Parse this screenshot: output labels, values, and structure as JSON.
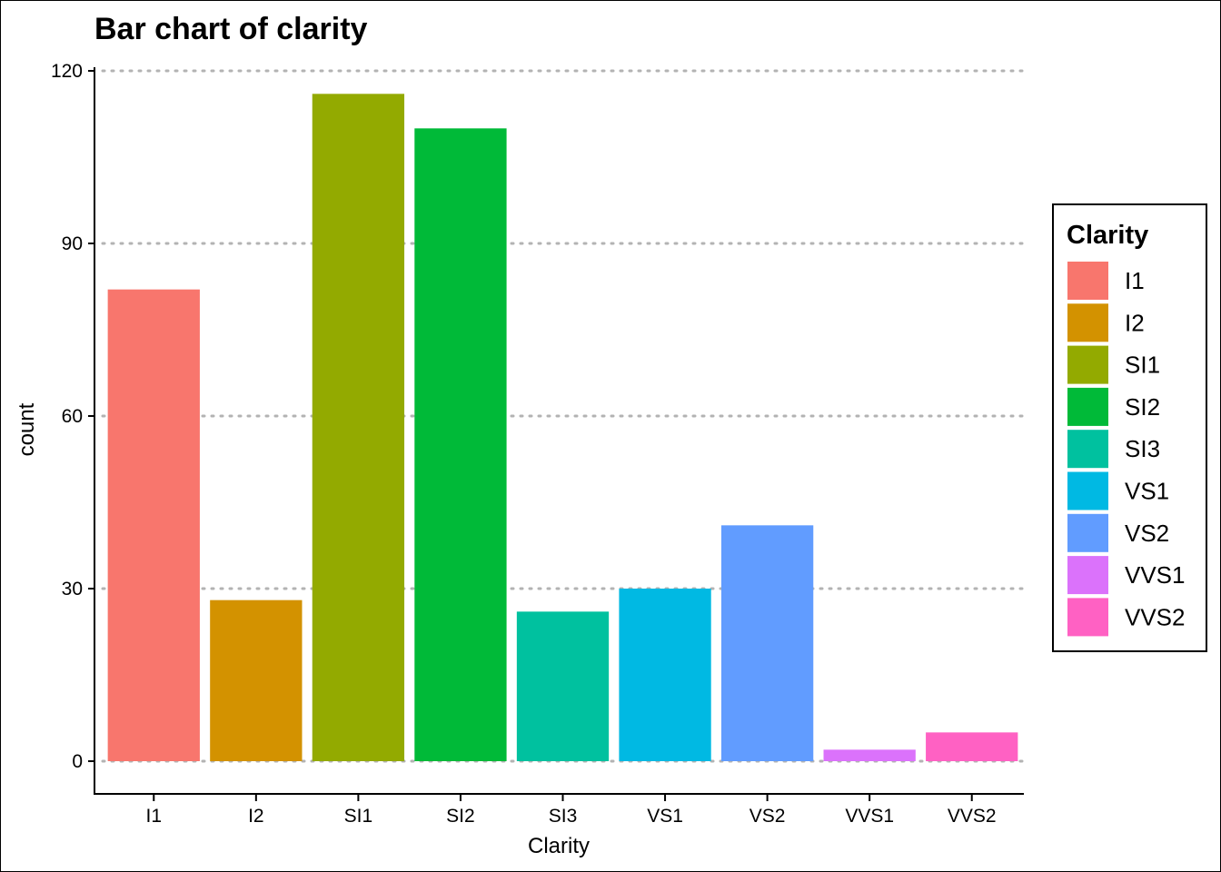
{
  "chart_data": {
    "type": "bar",
    "title": "Bar chart of clarity",
    "xlabel": "Clarity",
    "ylabel": "count",
    "categories": [
      "I1",
      "I2",
      "SI1",
      "SI2",
      "SI3",
      "VS1",
      "VS2",
      "VVS1",
      "VVS2"
    ],
    "values": [
      82,
      28,
      116,
      110,
      26,
      30,
      41,
      2,
      5
    ],
    "colors": [
      "#F8766D",
      "#D39200",
      "#93AA00",
      "#00BA38",
      "#00C19F",
      "#00B9E3",
      "#619CFF",
      "#DB72FB",
      "#FF61C3"
    ],
    "ylim": [
      0,
      120
    ],
    "yticks": [
      0,
      30,
      60,
      90,
      120
    ],
    "grid": "horizontal dotted",
    "legend": {
      "title": "Clarity",
      "placement": "right",
      "entries": [
        "I1",
        "I2",
        "SI1",
        "SI2",
        "SI3",
        "VS1",
        "VS2",
        "VVS1",
        "VVS2"
      ]
    }
  }
}
